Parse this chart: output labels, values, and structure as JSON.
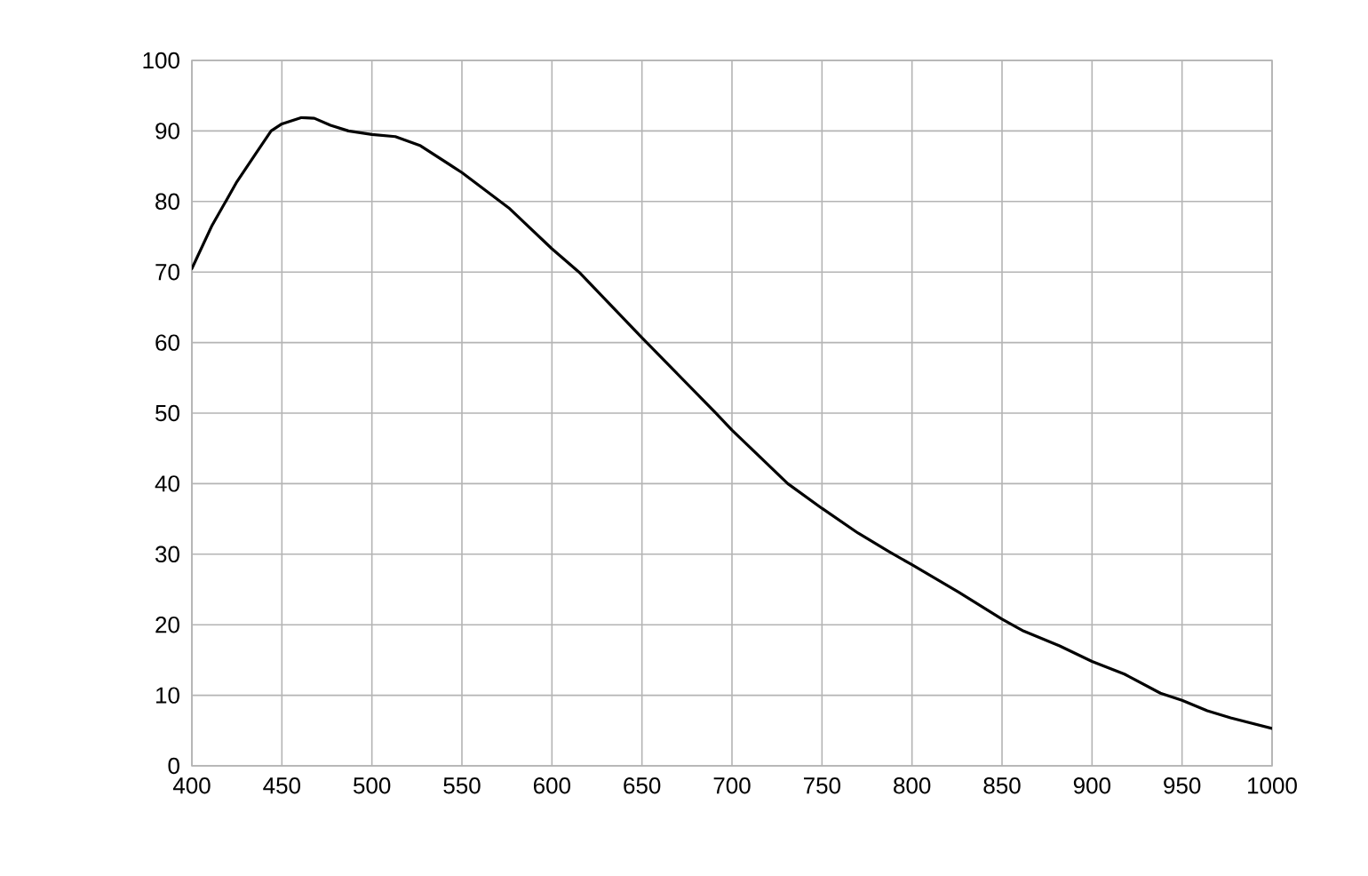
{
  "chart_data": {
    "type": "line",
    "x": [
      400,
      411,
      425,
      435,
      444,
      450,
      461,
      468,
      477,
      487,
      500,
      513,
      527,
      550,
      576,
      600,
      615,
      650,
      691,
      700,
      731,
      750,
      770,
      787,
      800,
      826,
      850,
      862,
      882,
      900,
      918,
      938,
      950,
      964,
      977,
      1000
    ],
    "series": [
      {
        "color": "#000000",
        "values": [
          70.5,
          76.5,
          82.8,
          86.6,
          90,
          91,
          91.9,
          91.8,
          90.8,
          90,
          89.5,
          89.2,
          87.9,
          84.1,
          79.1,
          73.3,
          70,
          60.7,
          50,
          47.6,
          40,
          36.5,
          33,
          30.4,
          28.5,
          24.6,
          20.8,
          19.1,
          17,
          14.8,
          13,
          10.3,
          9.3,
          7.8,
          6.8,
          5.3
        ]
      }
    ],
    "xlim": [
      400,
      1000
    ],
    "ylim": [
      0,
      100
    ],
    "xticks": [
      400,
      450,
      500,
      550,
      600,
      650,
      700,
      750,
      800,
      850,
      900,
      950,
      1000
    ],
    "yticks": [
      0,
      10,
      20,
      30,
      40,
      50,
      60,
      70,
      80,
      90,
      100
    ],
    "grid": true
  }
}
